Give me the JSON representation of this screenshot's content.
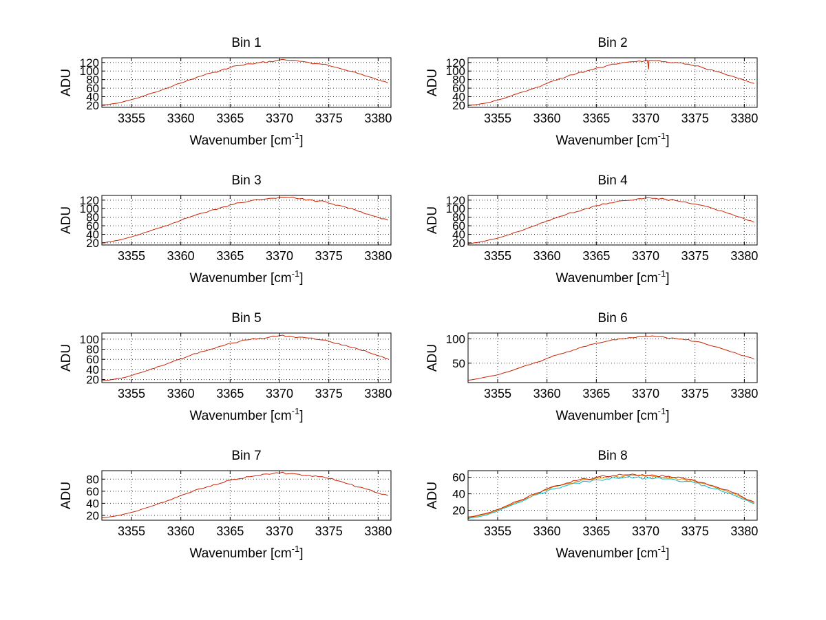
{
  "figure": {
    "background": "#ffffff",
    "xlabel_prefix": "Wavenumber [cm",
    "xlabel_sup": "-1",
    "xlabel_suffix": "]",
    "ylabel": "ADU",
    "colors": {
      "line_red": "#cc2200",
      "line_orange": "#dd8800",
      "line_cyan": "#00b8cc",
      "grid": "#333333",
      "axis": "#000000"
    }
  },
  "chart_data": [
    {
      "type": "line",
      "title": "Bin 1",
      "xlabel": "Wavenumber [cm^-1]",
      "ylabel": "ADU",
      "x_start": 3352,
      "x_step": 1,
      "xlim": [
        3352,
        3381.3
      ],
      "x_ticks": [
        3355,
        3360,
        3365,
        3370,
        3375,
        3380
      ],
      "y_ticks": [
        20,
        40,
        60,
        80,
        100,
        120
      ],
      "ylim": [
        15,
        131
      ],
      "noise": 2.5,
      "series": [
        {
          "name": "spectrum-red",
          "color": "#cc2200",
          "y": [
            20,
            23,
            27,
            33,
            40,
            48,
            55,
            63,
            72,
            80,
            88,
            95,
            101,
            108,
            113,
            117,
            120,
            123,
            126,
            125,
            123,
            120,
            117,
            113,
            107,
            100,
            94,
            87,
            79,
            72
          ]
        }
      ]
    },
    {
      "type": "line",
      "title": "Bin 2",
      "xlabel": "Wavenumber [cm^-1]",
      "ylabel": "ADU",
      "x_start": 3352,
      "x_step": 1,
      "xlim": [
        3352,
        3381.3
      ],
      "x_ticks": [
        3355,
        3360,
        3365,
        3370,
        3375,
        3380
      ],
      "y_ticks": [
        20,
        40,
        60,
        80,
        100,
        120
      ],
      "ylim": [
        15,
        131
      ],
      "noise": 2.5,
      "series": [
        {
          "name": "spectrum-red",
          "color": "#cc2200",
          "y": [
            19,
            22,
            26,
            32,
            39,
            47,
            54,
            62,
            71,
            79,
            87,
            94,
            100,
            107,
            112,
            116,
            120,
            122,
            125,
            124,
            122,
            120,
            116,
            112,
            106,
            100,
            93,
            86,
            78,
            71
          ],
          "spikes": [
            {
              "x": 3370.3,
              "v": 104,
              "base": 125
            }
          ]
        }
      ]
    },
    {
      "type": "line",
      "title": "Bin 3",
      "xlabel": "Wavenumber [cm^-1]",
      "ylabel": "ADU",
      "x_start": 3352,
      "x_step": 1,
      "xlim": [
        3352,
        3381.3
      ],
      "x_ticks": [
        3355,
        3360,
        3365,
        3370,
        3375,
        3380
      ],
      "y_ticks": [
        20,
        40,
        60,
        80,
        100,
        120
      ],
      "ylim": [
        15,
        131
      ],
      "noise": 2.5,
      "series": [
        {
          "name": "spectrum-red",
          "color": "#cc2200",
          "y": [
            20,
            23,
            28,
            34,
            41,
            49,
            56,
            64,
            73,
            81,
            89,
            96,
            102,
            109,
            114,
            118,
            121,
            124,
            127,
            126,
            123,
            121,
            118,
            113,
            108,
            101,
            94,
            87,
            80,
            73
          ]
        }
      ]
    },
    {
      "type": "line",
      "title": "Bin 4",
      "xlabel": "Wavenumber [cm^-1]",
      "ylabel": "ADU",
      "x_start": 3352,
      "x_step": 1,
      "xlim": [
        3352,
        3381.3
      ],
      "x_ticks": [
        3355,
        3360,
        3365,
        3370,
        3375,
        3380
      ],
      "y_ticks": [
        20,
        40,
        60,
        80,
        100,
        120
      ],
      "ylim": [
        15,
        131
      ],
      "noise": 2.5,
      "series": [
        {
          "name": "spectrum-red",
          "color": "#cc2200",
          "y": [
            18,
            21,
            26,
            31,
            38,
            46,
            54,
            62,
            71,
            79,
            87,
            93,
            100,
            107,
            111,
            116,
            119,
            122,
            125,
            124,
            122,
            119,
            116,
            111,
            106,
            99,
            92,
            84,
            76,
            68
          ]
        }
      ]
    },
    {
      "type": "line",
      "title": "Bin 5",
      "xlabel": "Wavenumber [cm^-1]",
      "ylabel": "ADU",
      "x_start": 3352,
      "x_step": 1,
      "xlim": [
        3352,
        3381.3
      ],
      "x_ticks": [
        3355,
        3360,
        3365,
        3370,
        3375,
        3380
      ],
      "y_ticks": [
        20,
        40,
        60,
        80,
        100
      ],
      "ylim": [
        14,
        112
      ],
      "noise": 2.0,
      "series": [
        {
          "name": "spectrum-red",
          "color": "#cc2200",
          "y": [
            17,
            20,
            23,
            28,
            34,
            41,
            47,
            54,
            61,
            68,
            75,
            80,
            86,
            92,
            96,
            99,
            102,
            104,
            107,
            106,
            104,
            102,
            99,
            96,
            91,
            85,
            80,
            74,
            67,
            61
          ]
        }
      ]
    },
    {
      "type": "line",
      "title": "Bin 6",
      "xlabel": "Wavenumber [cm^-1]",
      "ylabel": "ADU",
      "x_start": 3352,
      "x_step": 1,
      "xlim": [
        3352,
        3381.3
      ],
      "x_ticks": [
        3355,
        3360,
        3365,
        3370,
        3375,
        3380
      ],
      "y_ticks": [
        50,
        100
      ],
      "ylim": [
        10,
        112
      ],
      "noise": 2.0,
      "series": [
        {
          "name": "spectrum-red",
          "color": "#cc2200",
          "y": [
            15,
            18,
            22,
            26,
            32,
            39,
            46,
            52,
            60,
            67,
            73,
            79,
            85,
            91,
            95,
            98,
            101,
            103,
            106,
            105,
            103,
            101,
            98,
            95,
            90,
            84,
            78,
            72,
            65,
            58
          ]
        }
      ]
    },
    {
      "type": "line",
      "title": "Bin 7",
      "xlabel": "Wavenumber [cm^-1]",
      "ylabel": "ADU",
      "x_start": 3352,
      "x_step": 1,
      "xlim": [
        3352,
        3381.3
      ],
      "x_ticks": [
        3355,
        3360,
        3365,
        3370,
        3375,
        3380
      ],
      "y_ticks": [
        20,
        40,
        60,
        80
      ],
      "ylim": [
        12,
        94
      ],
      "noise": 2.0,
      "series": [
        {
          "name": "spectrum-red",
          "color": "#cc2200",
          "y": [
            16,
            18,
            21,
            25,
            30,
            35,
            41,
            46,
            53,
            58,
            64,
            68,
            73,
            78,
            81,
            84,
            86,
            88,
            90,
            89,
            88,
            86,
            84,
            81,
            77,
            72,
            67,
            63,
            57,
            53
          ]
        }
      ]
    },
    {
      "type": "line",
      "title": "Bin 8",
      "xlabel": "Wavenumber [cm^-1]",
      "ylabel": "ADU",
      "x_start": 3352,
      "x_step": 1,
      "xlim": [
        3352,
        3381.3
      ],
      "x_ticks": [
        3355,
        3360,
        3365,
        3370,
        3375,
        3380
      ],
      "y_ticks": [
        20,
        40,
        60
      ],
      "ylim": [
        8,
        68
      ],
      "noise": 1.8,
      "series": [
        {
          "name": "spectrum-cyan",
          "color": "#00b8cc",
          "y": [
            10,
            12,
            15,
            19,
            24,
            29,
            34,
            39,
            43,
            47,
            50,
            53,
            55,
            57,
            58,
            59,
            60,
            60,
            59,
            59,
            58,
            57,
            55,
            53,
            50,
            46,
            42,
            38,
            33,
            28
          ]
        },
        {
          "name": "spectrum-orange",
          "color": "#dd8800",
          "y": [
            11,
            13,
            16,
            20,
            25,
            30,
            35,
            40,
            45,
            49,
            52,
            55,
            57,
            59,
            60,
            61,
            62,
            62,
            61,
            61,
            60,
            59,
            57,
            55,
            52,
            48,
            44,
            40,
            34,
            29
          ]
        },
        {
          "name": "spectrum-red",
          "color": "#cc2200",
          "y": [
            12,
            14,
            17,
            21,
            26,
            31,
            36,
            41,
            46,
            50,
            53,
            56,
            58,
            60,
            61,
            62,
            63,
            63,
            62,
            62,
            61,
            60,
            58,
            56,
            53,
            49,
            45,
            41,
            35,
            30
          ]
        }
      ]
    }
  ]
}
